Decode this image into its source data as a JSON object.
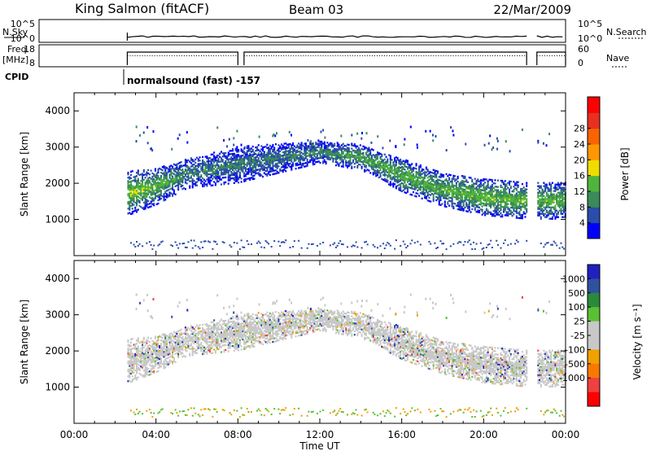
{
  "header": {
    "station": "King Salmon (fitACF)",
    "beam": "Beam 03",
    "date": "22/Mar/2009"
  },
  "strip_labels": {
    "nsky": "N.Sky",
    "freq_top": "Freq.",
    "freq_unit": "[MHz]",
    "cpid": "CPID",
    "nsearch": "N.Search",
    "nave": "Nave",
    "cpid_text": "normalsound (fast) -157"
  },
  "strip_ticks": {
    "nsky": [
      "10^5",
      "10^0"
    ],
    "nsearch": [
      "10^5",
      "10^0"
    ],
    "freq": [
      "18",
      "8"
    ],
    "nave": [
      "60",
      "0"
    ]
  },
  "colors": {
    "power": [
      "#0000ff",
      "#2a4caa",
      "#3a8a5a",
      "#50b43c",
      "#f0dc00",
      "#ff9800",
      "#f86400",
      "#e83020",
      "#ff0000"
    ],
    "velocity": [
      "#2020c0",
      "#3050a0",
      "#2a8a3a",
      "#5ac032",
      "#c8c8c8",
      "#c8c8c8",
      "#f0a000",
      "#f87800",
      "#f04040",
      "#ff0000"
    ]
  },
  "chart_data": [
    {
      "type": "heatmap",
      "name": "power",
      "xlabel": "Time UT",
      "ylabel": "Slant Range [km]",
      "xlim": [
        0,
        24
      ],
      "ylim": [
        0,
        4500
      ],
      "x_ticks": [
        "00:00",
        "04:00",
        "08:00",
        "12:00",
        "16:00",
        "20:00",
        "00:00"
      ],
      "y_ticks": [
        1000,
        2000,
        3000,
        4000
      ],
      "colorbar_label": "Power [dB]",
      "colorbar_ticks": [
        "4",
        "8",
        "12",
        "16",
        "20",
        "24",
        "28"
      ],
      "data_start_hour": 2.6,
      "gap_hours": [
        22.1,
        22.6
      ],
      "echo_band": [
        {
          "t": 2.6,
          "center": 1700,
          "width": 600,
          "power": 16
        },
        {
          "t": 4.0,
          "center": 1900,
          "width": 500,
          "power": 14
        },
        {
          "t": 5.5,
          "center": 2250,
          "width": 400,
          "power": 10
        },
        {
          "t": 8.0,
          "center": 2500,
          "width": 500,
          "power": 9
        },
        {
          "t": 12.0,
          "center": 2850,
          "width": 300,
          "power": 10
        },
        {
          "t": 14.0,
          "center": 2700,
          "width": 350,
          "power": 12
        },
        {
          "t": 16.0,
          "center": 2200,
          "width": 450,
          "power": 14
        },
        {
          "t": 18.0,
          "center": 1800,
          "width": 450,
          "power": 14
        },
        {
          "t": 20.0,
          "center": 1600,
          "width": 500,
          "power": 15
        },
        {
          "t": 22.1,
          "center": 1500,
          "width": 500,
          "power": 14
        },
        {
          "t": 24.0,
          "center": 1500,
          "width": 500,
          "power": 14
        }
      ]
    },
    {
      "type": "heatmap",
      "name": "velocity",
      "xlabel": "Time UT",
      "ylabel": "Slant Range [km]",
      "xlim": [
        0,
        24
      ],
      "ylim": [
        0,
        4500
      ],
      "x_ticks": [
        "00:00",
        "04:00",
        "08:00",
        "12:00",
        "16:00",
        "20:00",
        "00:00"
      ],
      "y_ticks": [
        1000,
        2000,
        3000,
        4000
      ],
      "colorbar_label": "Velocity [m s⁻¹]",
      "colorbar_ticks": [
        "1000",
        "500",
        "100",
        "25",
        "-25",
        "-100",
        "-500",
        "-1000"
      ],
      "dominant_velocity_band": [
        -25,
        25
      ]
    }
  ]
}
